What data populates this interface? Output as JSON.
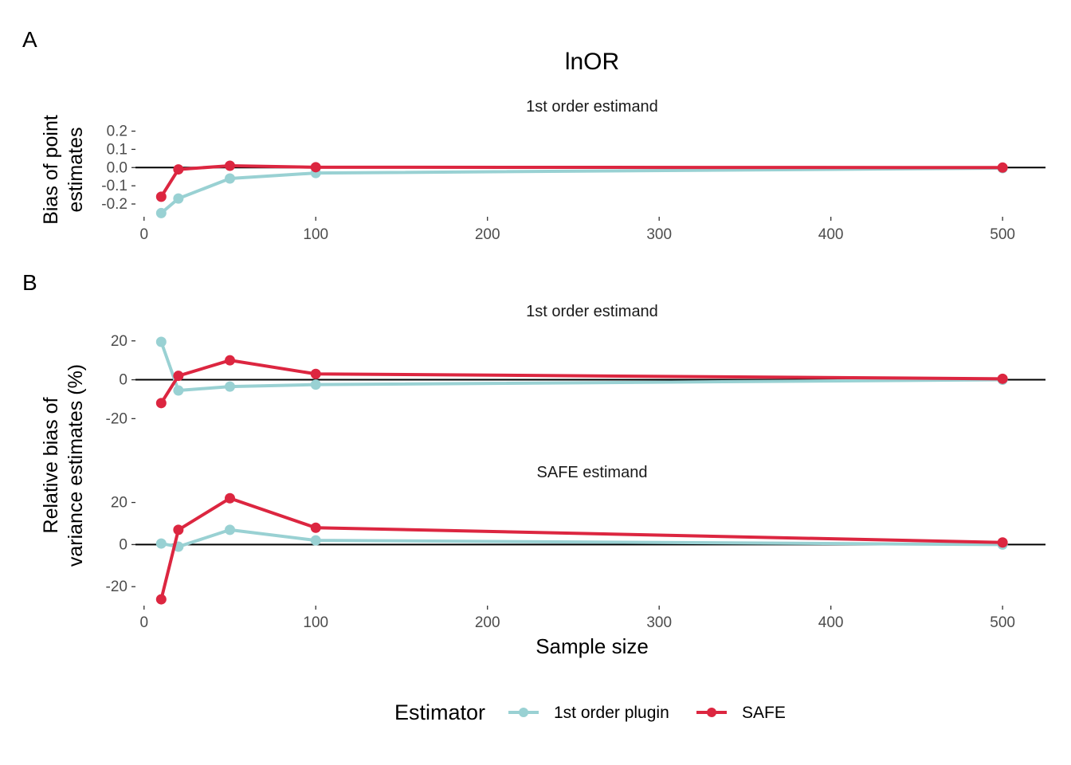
{
  "figure": {
    "title": "lnOR",
    "panel_labels": [
      "A",
      "B"
    ],
    "xlabel": "Sample size",
    "legend": {
      "title": "Estimator",
      "position": "bottom",
      "entries": [
        "1st order plugin",
        "SAFE"
      ]
    },
    "colors": {
      "plugin": "#99d1d3",
      "safe": "#dc2640",
      "zero_line": "#000000"
    }
  },
  "chart_data": [
    {
      "type": "line",
      "panel": "A",
      "facet_title": "1st order estimand",
      "ylabel": "Bias of point estimates",
      "x": [
        10,
        20,
        50,
        100,
        500
      ],
      "xlim": [
        -5,
        525
      ],
      "xticks": [
        0,
        100,
        200,
        300,
        400,
        500
      ],
      "ylim": [
        -0.27,
        0.22
      ],
      "yticks": [
        0.2,
        0.1,
        0.0,
        -0.1,
        -0.2
      ],
      "ytick_labels": [
        "0.2",
        "0.1",
        "0.0",
        "-0.1",
        "-0.2"
      ],
      "series": [
        {
          "name": "1st order plugin",
          "values": [
            -0.25,
            -0.17,
            -0.06,
            -0.03,
            -0.003
          ]
        },
        {
          "name": "SAFE",
          "values": [
            -0.16,
            -0.01,
            0.01,
            0.002,
            0.0
          ]
        }
      ],
      "grid": false
    },
    {
      "type": "line",
      "panel": "B",
      "facet_title": "1st order estimand",
      "ylabel": "Relative bias of variance estimates (%)",
      "x": [
        10,
        20,
        50,
        100,
        500
      ],
      "xlim": [
        -5,
        525
      ],
      "xticks": [
        0,
        100,
        200,
        300,
        400,
        500
      ],
      "ylim": [
        -26,
        24
      ],
      "yticks": [
        20,
        0,
        -20
      ],
      "ytick_labels": [
        "20",
        "0",
        "-20"
      ],
      "series": [
        {
          "name": "1st order plugin",
          "values": [
            19.5,
            -5.5,
            -3.5,
            -2.5,
            0.0
          ]
        },
        {
          "name": "SAFE",
          "values": [
            -12,
            2,
            10,
            3,
            0.5
          ]
        }
      ],
      "grid": false
    },
    {
      "type": "line",
      "panel": "B",
      "facet_title": "SAFE estimand",
      "ylabel": "Relative bias of variance estimates (%)",
      "x": [
        10,
        20,
        50,
        100,
        500
      ],
      "xlim": [
        -5,
        525
      ],
      "xticks": [
        0,
        100,
        200,
        300,
        400,
        500
      ],
      "ylim": [
        -29,
        24
      ],
      "yticks": [
        20,
        0,
        -20
      ],
      "ytick_labels": [
        "20",
        "0",
        "-20"
      ],
      "series": [
        {
          "name": "1st order plugin",
          "values": [
            0.5,
            -1,
            7,
            2,
            0.0
          ]
        },
        {
          "name": "SAFE",
          "values": [
            -26,
            7,
            22,
            8,
            1
          ]
        }
      ],
      "grid": false
    }
  ]
}
